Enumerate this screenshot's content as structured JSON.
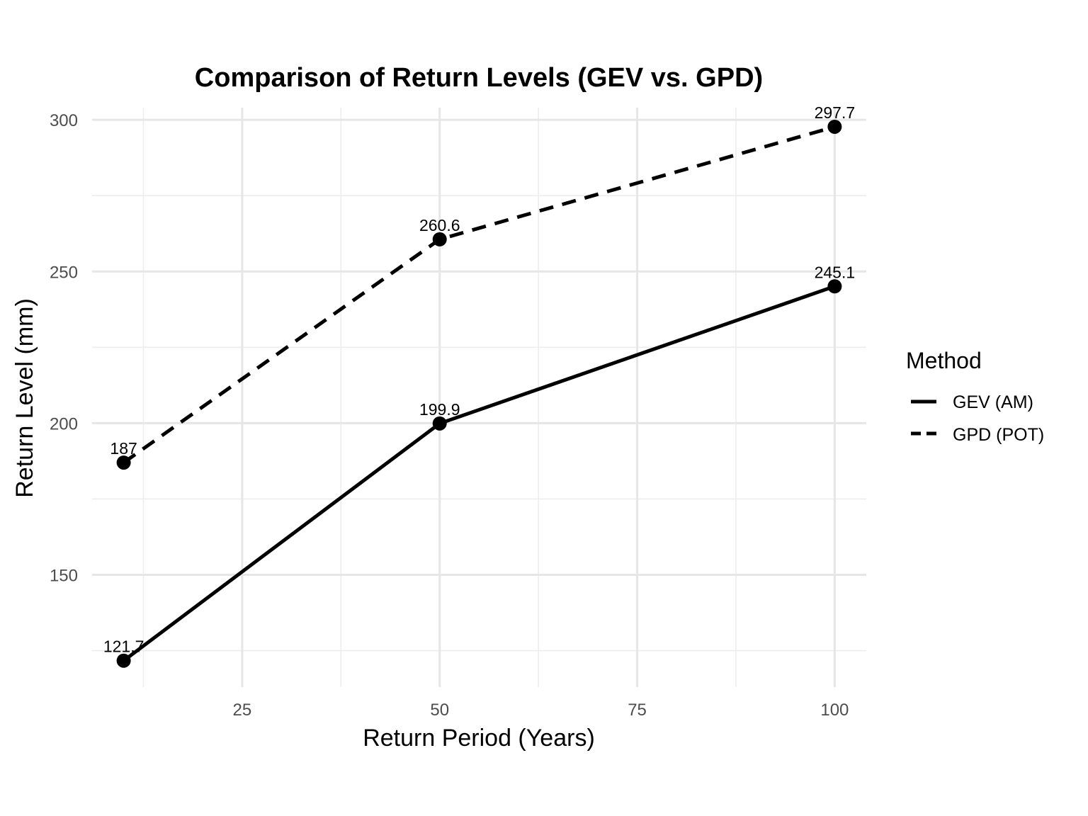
{
  "chart_data": {
    "type": "line",
    "title": "Comparison of Return Levels (GEV vs. GPD)",
    "xlabel": "Return Period (Years)",
    "ylabel": "Return Level (mm)",
    "x": [
      10,
      50,
      100
    ],
    "xlim": [
      6,
      104
    ],
    "ylim": [
      113,
      304
    ],
    "xticks": [
      25,
      50,
      75,
      100
    ],
    "yticks": [
      150,
      200,
      250,
      300
    ],
    "grid": true,
    "series": [
      {
        "name": "GEV (AM)",
        "line_style": "solid",
        "values": [
          121.7,
          199.9,
          245.1
        ],
        "labels": [
          "121.7",
          "199.9",
          "245.1"
        ]
      },
      {
        "name": "GPD (POT)",
        "line_style": "dashed",
        "values": [
          187,
          260.6,
          297.7
        ],
        "labels": [
          "187",
          "260.6",
          "297.7"
        ]
      }
    ],
    "legend": {
      "title": "Method",
      "position": "right"
    },
    "colors": {
      "line": "#000000",
      "grid": "#e6e6e6",
      "tick_text": "#4d4d4d"
    }
  }
}
